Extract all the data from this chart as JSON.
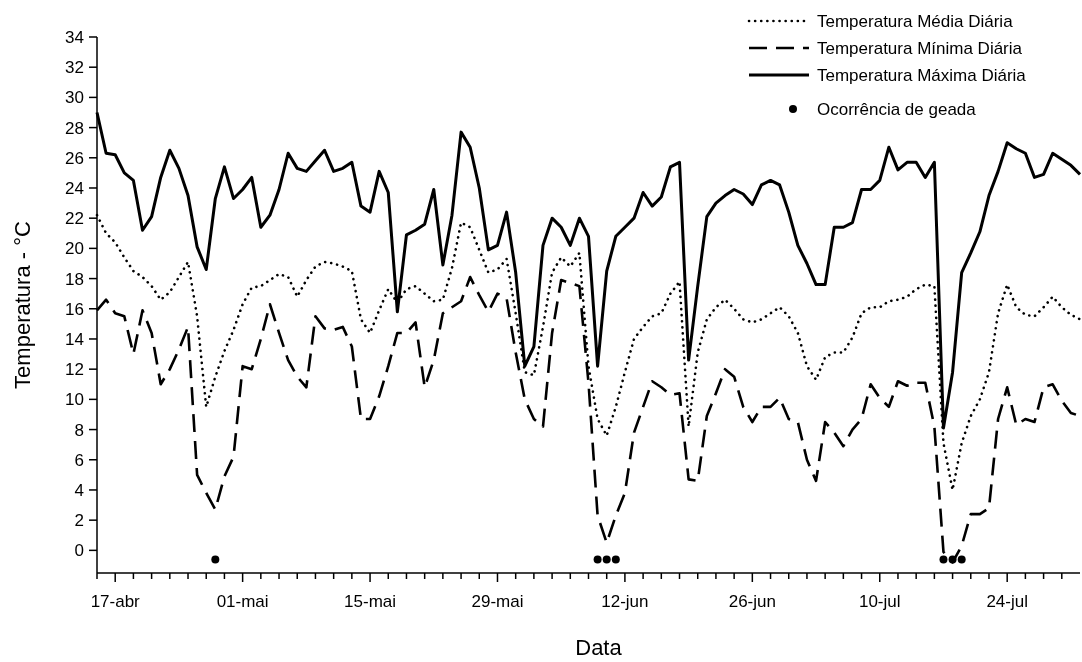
{
  "chart_data": {
    "type": "line",
    "xlabel": "Data",
    "ylabel": "Temperatura - °C",
    "legend": "top right",
    "xlim": [
      "--04-15",
      "--08-01"
    ],
    "ylim": [
      -1.5,
      34
    ],
    "yticks": [
      0,
      2,
      4,
      6,
      8,
      10,
      12,
      14,
      16,
      18,
      20,
      22,
      24,
      26,
      28,
      30,
      32,
      34
    ],
    "xticks": [
      {
        "value": "--04-15",
        "label": null
      },
      {
        "value": "--04-17",
        "label": "17-abr"
      },
      {
        "value": "--04-19",
        "label": null
      },
      {
        "value": "--04-21",
        "label": null
      },
      {
        "value": "--04-23",
        "label": null
      },
      {
        "value": "--04-25",
        "label": null
      },
      {
        "value": "--04-27",
        "label": null
      },
      {
        "value": "--04-29",
        "label": null
      },
      {
        "value": "--05-01",
        "label": "01-mai"
      },
      {
        "value": "--05-03",
        "label": null
      },
      {
        "value": "--05-05",
        "label": null
      },
      {
        "value": "--05-07",
        "label": null
      },
      {
        "value": "--05-09",
        "label": null
      },
      {
        "value": "--05-11",
        "label": null
      },
      {
        "value": "--05-13",
        "label": null
      },
      {
        "value": "--05-15",
        "label": "15-mai"
      },
      {
        "value": "--05-17",
        "label": null
      },
      {
        "value": "--05-19",
        "label": null
      },
      {
        "value": "--05-21",
        "label": null
      },
      {
        "value": "--05-23",
        "label": null
      },
      {
        "value": "--05-25",
        "label": null
      },
      {
        "value": "--05-27",
        "label": null
      },
      {
        "value": "--05-29",
        "label": "29-mai"
      },
      {
        "value": "--05-31",
        "label": null
      },
      {
        "value": "--06-02",
        "label": null
      },
      {
        "value": "--06-04",
        "label": null
      },
      {
        "value": "--06-06",
        "label": null
      },
      {
        "value": "--06-08",
        "label": null
      },
      {
        "value": "--06-10",
        "label": null
      },
      {
        "value": "--06-12",
        "label": "12-jun"
      },
      {
        "value": "--06-14",
        "label": null
      },
      {
        "value": "--06-16",
        "label": null
      },
      {
        "value": "--06-18",
        "label": null
      },
      {
        "value": "--06-20",
        "label": null
      },
      {
        "value": "--06-22",
        "label": null
      },
      {
        "value": "--06-24",
        "label": null
      },
      {
        "value": "--06-26",
        "label": "26-jun"
      },
      {
        "value": "--06-28",
        "label": null
      },
      {
        "value": "--06-30",
        "label": null
      },
      {
        "value": "--07-02",
        "label": null
      },
      {
        "value": "--07-04",
        "label": null
      },
      {
        "value": "--07-06",
        "label": null
      },
      {
        "value": "--07-08",
        "label": null
      },
      {
        "value": "--07-10",
        "label": "10-jul"
      },
      {
        "value": "--07-12",
        "label": null
      },
      {
        "value": "--07-14",
        "label": null
      },
      {
        "value": "--07-16",
        "label": null
      },
      {
        "value": "--07-18",
        "label": null
      },
      {
        "value": "--07-20",
        "label": null
      },
      {
        "value": "--07-22",
        "label": null
      },
      {
        "value": "--07-24",
        "label": "24-jul"
      },
      {
        "value": "--07-26",
        "label": null
      },
      {
        "value": "--07-28",
        "label": null
      },
      {
        "value": "--07-30",
        "label": null
      }
    ],
    "x": [
      "--04-15",
      "--04-16",
      "--04-17",
      "--04-18",
      "--04-19",
      "--04-20",
      "--04-21",
      "--04-22",
      "--04-23",
      "--04-24",
      "--04-25",
      "--04-26",
      "--04-27",
      "--04-28",
      "--04-29",
      "--04-30",
      "--05-01",
      "--05-02",
      "--05-03",
      "--05-04",
      "--05-05",
      "--05-06",
      "--05-07",
      "--05-08",
      "--05-09",
      "--05-10",
      "--05-11",
      "--05-12",
      "--05-13",
      "--05-14",
      "--05-15",
      "--05-16",
      "--05-17",
      "--05-18",
      "--05-19",
      "--05-20",
      "--05-21",
      "--05-22",
      "--05-23",
      "--05-24",
      "--05-25",
      "--05-26",
      "--05-27",
      "--05-28",
      "--05-29",
      "--05-30",
      "--05-31",
      "--06-01",
      "--06-02",
      "--06-03",
      "--06-04",
      "--06-05",
      "--06-06",
      "--06-07",
      "--06-08",
      "--06-09",
      "--06-10",
      "--06-11",
      "--06-12",
      "--06-13",
      "--06-14",
      "--06-15",
      "--06-16",
      "--06-17",
      "--06-18",
      "--06-19",
      "--06-20",
      "--06-21",
      "--06-22",
      "--06-23",
      "--06-24",
      "--06-25",
      "--06-26",
      "--06-27",
      "--06-28",
      "--06-29",
      "--06-30",
      "--07-01",
      "--07-02",
      "--07-03",
      "--07-04",
      "--07-05",
      "--07-06",
      "--07-07",
      "--07-08",
      "--07-09",
      "--07-10",
      "--07-11",
      "--07-12",
      "--07-13",
      "--07-14",
      "--07-15",
      "--07-16",
      "--07-17",
      "--07-18",
      "--07-19",
      "--07-20",
      "--07-21",
      "--07-22",
      "--07-23",
      "--07-24",
      "--07-25",
      "--07-26",
      "--07-27",
      "--07-28",
      "--07-29",
      "--07-30",
      "--07-31",
      "--08-01"
    ],
    "series": [
      {
        "name": "Temperatura Média Diária",
        "color": "#000000",
        "line_style": "dotted",
        "values": [
          22.2,
          21.0,
          20.4,
          19.4,
          18.5,
          18.1,
          17.5,
          16.6,
          17.1,
          18.1,
          19.1,
          15.5,
          9.5,
          11.5,
          13.2,
          14.6,
          16.3,
          17.4,
          17.5,
          17.9,
          18.3,
          18.1,
          16.8,
          17.9,
          18.8,
          19.1,
          19.0,
          18.8,
          18.5,
          15.3,
          14.4,
          15.9,
          17.3,
          16.4,
          17.3,
          17.5,
          17.0,
          16.5,
          16.6,
          18.7,
          21.7,
          21.4,
          19.9,
          18.4,
          18.6,
          19.3,
          15.7,
          11.8,
          11.6,
          14.8,
          18.4,
          19.4,
          18.8,
          19.7,
          12.2,
          8.7,
          7.6,
          9.5,
          11.8,
          14.0,
          14.8,
          15.5,
          15.7,
          17.0,
          17.8,
          8.2,
          13.1,
          15.3,
          16.1,
          16.6,
          16.0,
          15.3,
          15.1,
          15.3,
          15.7,
          16.1,
          15.5,
          14.4,
          12.2,
          11.3,
          12.8,
          13.1,
          13.1,
          14.1,
          15.7,
          16.1,
          16.1,
          16.5,
          16.6,
          16.8,
          17.3,
          17.6,
          17.5,
          7.1,
          4.0,
          7.1,
          8.9,
          10.0,
          11.8,
          15.7,
          17.6,
          16.1,
          15.6,
          15.5,
          16.1,
          16.8,
          16.1,
          15.6,
          15.3
        ]
      },
      {
        "name": "Temperatura Mínima Diária",
        "color": "#000000",
        "line_style": "dashed",
        "values": [
          15.9,
          16.6,
          15.7,
          15.5,
          13.0,
          15.9,
          14.4,
          11.0,
          12.0,
          13.3,
          14.8,
          5.0,
          3.8,
          2.7,
          4.9,
          6.2,
          12.2,
          12.0,
          14.0,
          16.3,
          14.4,
          12.6,
          11.5,
          10.8,
          15.5,
          14.7,
          14.6,
          14.8,
          13.5,
          8.7,
          8.7,
          10.2,
          12.2,
          14.4,
          14.4,
          15.1,
          10.8,
          12.6,
          15.7,
          16.1,
          16.5,
          18.1,
          16.9,
          15.8,
          17.0,
          16.7,
          13.1,
          10.0,
          8.7,
          8.2,
          14.4,
          17.9,
          17.7,
          17.5,
          11.1,
          2.3,
          0.5,
          2.3,
          3.8,
          7.8,
          9.5,
          11.2,
          10.8,
          10.3,
          10.4,
          4.7,
          4.6,
          8.9,
          10.4,
          12.0,
          11.5,
          9.5,
          8.5,
          9.5,
          9.5,
          10.1,
          8.7,
          8.5,
          6.0,
          4.6,
          8.5,
          7.8,
          6.9,
          8.0,
          8.7,
          11.0,
          10.1,
          9.5,
          11.2,
          10.9,
          11.1,
          11.1,
          8.2,
          -0.1,
          -0.8,
          0.3,
          2.4,
          2.4,
          2.8,
          8.7,
          10.8,
          8.3,
          8.7,
          8.5,
          10.8,
          11.0,
          9.9,
          9.1,
          8.9
        ]
      },
      {
        "name": "Temperatura Máxima Diária",
        "color": "#000000",
        "line_style": "solid",
        "values": [
          29.0,
          26.3,
          26.2,
          25.0,
          24.5,
          21.2,
          22.1,
          24.7,
          26.5,
          25.3,
          23.5,
          20.1,
          18.6,
          23.3,
          25.4,
          23.3,
          23.9,
          24.7,
          21.4,
          22.2,
          23.9,
          26.3,
          25.3,
          25.1,
          25.8,
          26.5,
          25.1,
          25.3,
          25.7,
          22.8,
          22.4,
          25.1,
          23.7,
          15.8,
          20.9,
          21.2,
          21.6,
          23.9,
          18.9,
          22.2,
          27.7,
          26.7,
          24.0,
          19.9,
          20.2,
          22.4,
          18.4,
          12.2,
          13.5,
          20.2,
          22.0,
          21.4,
          20.2,
          22.0,
          20.8,
          12.2,
          18.5,
          20.8,
          21.4,
          22.0,
          23.7,
          22.8,
          23.4,
          25.4,
          25.7,
          12.6,
          17.5,
          22.1,
          23.0,
          23.5,
          23.9,
          23.6,
          22.9,
          24.2,
          24.5,
          24.2,
          22.4,
          20.2,
          19.0,
          17.6,
          17.6,
          21.4,
          21.4,
          21.7,
          23.9,
          23.9,
          24.5,
          26.7,
          25.2,
          25.7,
          25.7,
          24.7,
          25.7,
          8.1,
          11.8,
          18.4,
          19.7,
          21.1,
          23.5,
          25.1,
          27.0,
          26.6,
          26.3,
          24.7,
          24.9,
          26.3,
          25.9,
          25.5,
          24.9
        ]
      },
      {
        "name": "Ocorrência de geada",
        "type": "scatter",
        "color": "#000000",
        "x": [
          "--04-28",
          "--06-09",
          "--06-10",
          "--06-11",
          "--07-17",
          "--07-18",
          "--07-19"
        ],
        "values": [
          -0.6,
          -0.6,
          -0.6,
          -0.6,
          -0.6,
          -0.6,
          -0.6
        ]
      }
    ]
  }
}
